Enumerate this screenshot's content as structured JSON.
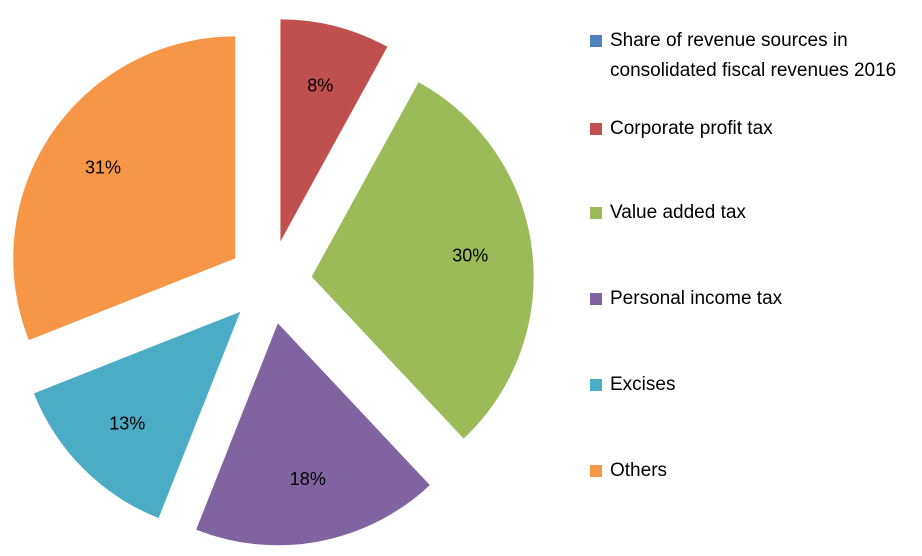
{
  "chart_data": {
    "type": "pie",
    "series_name": "Share of revenue sources in consolidated fiscal revenues 2016",
    "series_color": "#4f81bd",
    "categories": [
      "Corporate profit tax",
      "Value added tax",
      "Personal income tax",
      "Excises",
      "Others"
    ],
    "values": [
      8,
      30,
      18,
      13,
      31
    ],
    "value_labels": [
      "8%",
      "30%",
      "18%",
      "13%",
      "31%"
    ],
    "colors": [
      "#c0504d",
      "#9bbb59",
      "#8064a2",
      "#4bacc6",
      "#f79646"
    ],
    "legend": "right"
  }
}
